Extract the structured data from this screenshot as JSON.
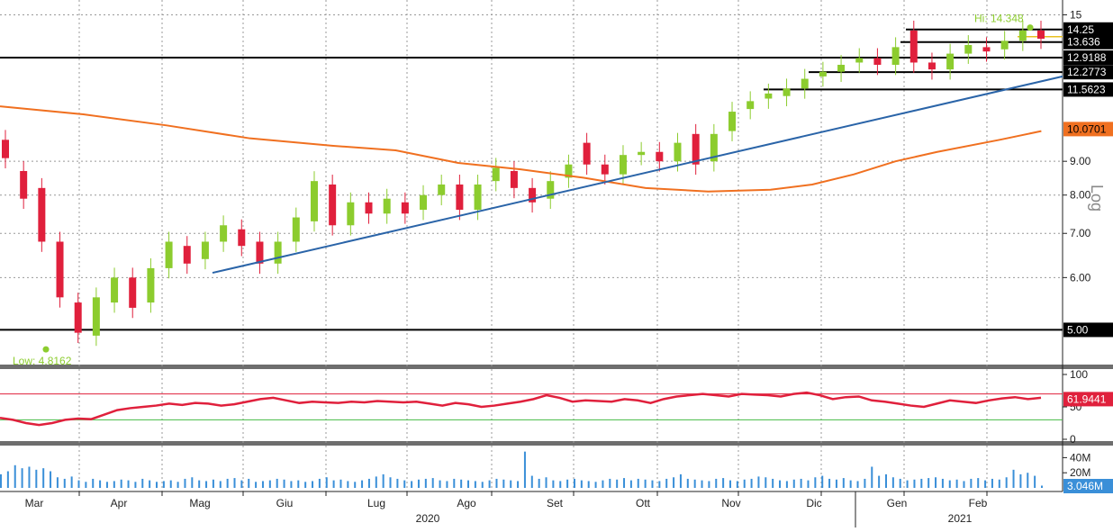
{
  "chart_data": [
    {
      "type": "candlestick",
      "scale": "log",
      "axis_label": "Log",
      "ylim": [
        4.5,
        15.5
      ],
      "price_ticks": [
        "15",
        "9.00",
        "8.00",
        "7.00",
        "6.00"
      ],
      "up_color": "#8ccc2e",
      "down_color": "#e0203c",
      "candles_weekly_approx": [
        {
          "o": 9.7,
          "c": 9.1
        },
        {
          "o": 8.7,
          "c": 7.9
        },
        {
          "o": 8.2,
          "c": 6.8
        },
        {
          "o": 6.8,
          "c": 5.6
        },
        {
          "o": 5.5,
          "c": 4.95
        },
        {
          "o": 4.9,
          "c": 5.6
        },
        {
          "o": 5.5,
          "c": 6.0
        },
        {
          "o": 6.0,
          "c": 5.4
        },
        {
          "o": 5.5,
          "c": 6.2
        },
        {
          "o": 6.2,
          "c": 6.8
        },
        {
          "o": 6.7,
          "c": 6.3
        },
        {
          "o": 6.4,
          "c": 6.8
        },
        {
          "o": 6.8,
          "c": 7.2
        },
        {
          "o": 7.1,
          "c": 6.7
        },
        {
          "o": 6.8,
          "c": 6.3
        },
        {
          "o": 6.3,
          "c": 6.8
        },
        {
          "o": 6.8,
          "c": 7.4
        },
        {
          "o": 7.3,
          "c": 8.4
        },
        {
          "o": 8.3,
          "c": 7.2
        },
        {
          "o": 7.2,
          "c": 7.8
        },
        {
          "o": 7.8,
          "c": 7.5
        },
        {
          "o": 7.5,
          "c": 7.9
        },
        {
          "o": 7.8,
          "c": 7.5
        },
        {
          "o": 7.6,
          "c": 8.0
        },
        {
          "o": 8.0,
          "c": 8.3
        },
        {
          "o": 8.3,
          "c": 7.6
        },
        {
          "o": 7.6,
          "c": 8.3
        },
        {
          "o": 8.4,
          "c": 8.8
        },
        {
          "o": 8.7,
          "c": 8.2
        },
        {
          "o": 8.2,
          "c": 7.8
        },
        {
          "o": 7.9,
          "c": 8.4
        },
        {
          "o": 8.5,
          "c": 8.9
        },
        {
          "o": 9.6,
          "c": 8.9
        },
        {
          "o": 8.9,
          "c": 8.6
        },
        {
          "o": 8.6,
          "c": 9.2
        },
        {
          "o": 9.2,
          "c": 9.3
        },
        {
          "o": 9.3,
          "c": 9.0
        },
        {
          "o": 9.0,
          "c": 9.6
        },
        {
          "o": 9.9,
          "c": 8.9
        },
        {
          "o": 9.0,
          "c": 9.9
        },
        {
          "o": 10.0,
          "c": 10.7
        },
        {
          "o": 10.8,
          "c": 11.1
        },
        {
          "o": 11.2,
          "c": 11.4
        },
        {
          "o": 11.3,
          "c": 11.6
        },
        {
          "o": 11.6,
          "c": 12.0
        },
        {
          "o": 12.1,
          "c": 12.3
        },
        {
          "o": 12.3,
          "c": 12.6
        },
        {
          "o": 12.7,
          "c": 12.9
        },
        {
          "o": 12.9,
          "c": 12.6
        },
        {
          "o": 12.6,
          "c": 13.4
        },
        {
          "o": 14.2,
          "c": 12.7
        },
        {
          "o": 12.7,
          "c": 12.4
        },
        {
          "o": 12.4,
          "c": 13.1
        },
        {
          "o": 13.1,
          "c": 13.5
        },
        {
          "o": 13.4,
          "c": 13.2
        },
        {
          "o": 13.3,
          "c": 13.7
        },
        {
          "o": 13.7,
          "c": 14.2
        },
        {
          "o": 14.2,
          "c": 13.8
        }
      ],
      "moving_average_200": {
        "color": "#f07020",
        "points": [
          [
            0,
            10.9
          ],
          [
            8,
            10.6
          ],
          [
            16,
            10.2
          ],
          [
            24,
            9.75
          ],
          [
            32,
            9.5
          ],
          [
            38,
            9.35
          ],
          [
            44,
            8.95
          ],
          [
            50,
            8.75
          ],
          [
            56,
            8.5
          ],
          [
            62,
            8.2
          ],
          [
            68,
            8.1
          ],
          [
            74,
            8.15
          ],
          [
            78,
            8.3
          ],
          [
            82,
            8.6
          ],
          [
            86,
            9.0
          ],
          [
            90,
            9.3
          ],
          [
            96,
            9.7
          ],
          [
            100,
            10.0
          ]
        ]
      },
      "trendline": {
        "color": "#2a64a8",
        "from": [
          25,
          6.1
        ],
        "to": [
          100,
          12.1
        ]
      },
      "horizontal_levels": [
        {
          "label": "5.00",
          "value": 5.0
        },
        {
          "label": "12.9188",
          "value": 12.92
        },
        {
          "label": "11.5623",
          "value": 11.56
        },
        {
          "label": "12.2773",
          "value": 12.28
        },
        {
          "label": "14.25",
          "value": 14.25
        },
        {
          "label": "13.636",
          "value": 13.64
        }
      ],
      "annotations": [
        {
          "label": "Hi: 14.348",
          "value": 14.348
        },
        {
          "label": "Low: 4.8162",
          "value": 4.8162
        }
      ],
      "price_badge": {
        "label": "10.0701",
        "color": "#f07020"
      }
    },
    {
      "type": "line",
      "ylim": [
        0,
        100
      ],
      "ticks": [
        "100",
        "50",
        "0"
      ],
      "upper_band": 70,
      "lower_band": 30,
      "color": "#e0203c",
      "current_label": "61.9441",
      "values": [
        33,
        30,
        25,
        22,
        25,
        30,
        32,
        31,
        38,
        45,
        48,
        50,
        52,
        55,
        53,
        56,
        55,
        52,
        54,
        58,
        62,
        64,
        60,
        56,
        58,
        57,
        56,
        58,
        57,
        59,
        58,
        57,
        58,
        55,
        52,
        56,
        54,
        50,
        52,
        55,
        58,
        62,
        68,
        64,
        58,
        60,
        59,
        58,
        62,
        60,
        56,
        62,
        66,
        68,
        70,
        68,
        66,
        70,
        69,
        68,
        66,
        70,
        72,
        68,
        62,
        65,
        66,
        60,
        58,
        55,
        52,
        50,
        55,
        60,
        58,
        56,
        60,
        63,
        65,
        62,
        64
      ]
    },
    {
      "type": "bar",
      "ylim": [
        0,
        50
      ],
      "ticks": [
        "40M",
        "20M"
      ],
      "current_label": "3.046M",
      "color": "#3a8fd8",
      "values": [
        18,
        22,
        30,
        26,
        28,
        24,
        26,
        22,
        14,
        12,
        15,
        10,
        8,
        12,
        10,
        8,
        9,
        11,
        10,
        8,
        12,
        10,
        8,
        9,
        10,
        8,
        12,
        14,
        10,
        9,
        11,
        9,
        12,
        13,
        10,
        12,
        8,
        9,
        10,
        12,
        11,
        9,
        10,
        8,
        9,
        12,
        14,
        10,
        11,
        9,
        8,
        10,
        12,
        15,
        18,
        14,
        12,
        10,
        9,
        11,
        12,
        13,
        10,
        9,
        12,
        11,
        10,
        9,
        8,
        10,
        12,
        11,
        10,
        9,
        48,
        16,
        12,
        14,
        10,
        9,
        11,
        12,
        10,
        9,
        8,
        10,
        12,
        11,
        13,
        10,
        12,
        11,
        10,
        9,
        12,
        14,
        18,
        12,
        11,
        10,
        9,
        12,
        13,
        10,
        9,
        11,
        12,
        15,
        14,
        12,
        10,
        9,
        11,
        12,
        10,
        14,
        16,
        12,
        11,
        13,
        10,
        9,
        12,
        28,
        16,
        18,
        14,
        12,
        10,
        11,
        12,
        13,
        14,
        12,
        10,
        11,
        9,
        12,
        13,
        10,
        12,
        11,
        14,
        24,
        18,
        20,
        16,
        3
      ]
    }
  ],
  "x_axis": {
    "months": [
      "Mar",
      "Apr",
      "Mag",
      "Giu",
      "Lug",
      "Ago",
      "Set",
      "Ott",
      "Nov",
      "Dic",
      "Gen",
      "Feb"
    ],
    "years": [
      "2020",
      "2021"
    ]
  }
}
